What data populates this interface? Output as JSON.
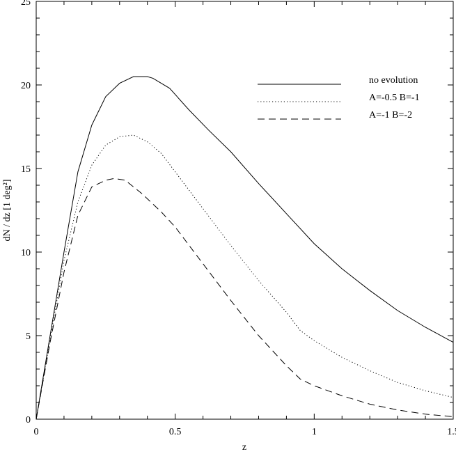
{
  "chart_data": {
    "type": "line",
    "title": "",
    "xlabel": "z",
    "ylabel": "dN / dz  [1 deg²]",
    "xlim": [
      0,
      1.5
    ],
    "ylim": [
      0,
      25
    ],
    "xticks": [
      0,
      0.5,
      1,
      1.5
    ],
    "xtick_labels": [
      "0",
      "0.5",
      "1",
      "1.5"
    ],
    "yticks": [
      0,
      5,
      10,
      15,
      20,
      25
    ],
    "ytick_labels": [
      "0",
      "5",
      "10",
      "15",
      "20",
      "25"
    ],
    "grid": false,
    "legend_position": "top-right",
    "series": [
      {
        "name": "no evolution",
        "dash": "solid",
        "x": [
          0,
          0.05,
          0.1,
          0.15,
          0.2,
          0.25,
          0.3,
          0.35,
          0.4,
          0.42,
          0.48,
          0.55,
          0.62,
          0.7,
          0.8,
          0.9,
          1.0,
          1.1,
          1.2,
          1.3,
          1.4,
          1.5
        ],
        "y": [
          0,
          5.0,
          10.0,
          14.8,
          17.6,
          19.3,
          20.1,
          20.5,
          20.5,
          20.4,
          19.8,
          18.5,
          17.3,
          16.0,
          14.1,
          12.3,
          10.5,
          9.0,
          7.7,
          6.5,
          5.5,
          4.6
        ]
      },
      {
        "name": "A=-0.5 B=-1",
        "dash": "dotted",
        "x": [
          0,
          0.05,
          0.1,
          0.15,
          0.2,
          0.25,
          0.3,
          0.35,
          0.4,
          0.45,
          0.5,
          0.6,
          0.7,
          0.8,
          0.9,
          0.95,
          1.0,
          1.1,
          1.2,
          1.3,
          1.4,
          1.5
        ],
        "y": [
          0,
          4.8,
          9.5,
          13.0,
          15.2,
          16.4,
          16.9,
          17.0,
          16.6,
          15.9,
          14.8,
          12.6,
          10.4,
          8.3,
          6.4,
          5.3,
          4.7,
          3.7,
          2.9,
          2.2,
          1.7,
          1.3
        ]
      },
      {
        "name": "A=-1 B=-2",
        "dash": "dashed",
        "x": [
          0,
          0.05,
          0.1,
          0.15,
          0.2,
          0.25,
          0.28,
          0.32,
          0.38,
          0.45,
          0.5,
          0.6,
          0.7,
          0.8,
          0.9,
          0.95,
          1.0,
          1.1,
          1.2,
          1.3,
          1.4,
          1.5
        ],
        "y": [
          0,
          4.6,
          8.8,
          12.2,
          13.9,
          14.3,
          14.4,
          14.3,
          13.5,
          12.4,
          11.5,
          9.3,
          7.1,
          5.0,
          3.2,
          2.4,
          2.0,
          1.4,
          0.9,
          0.55,
          0.3,
          0.15
        ]
      }
    ]
  }
}
